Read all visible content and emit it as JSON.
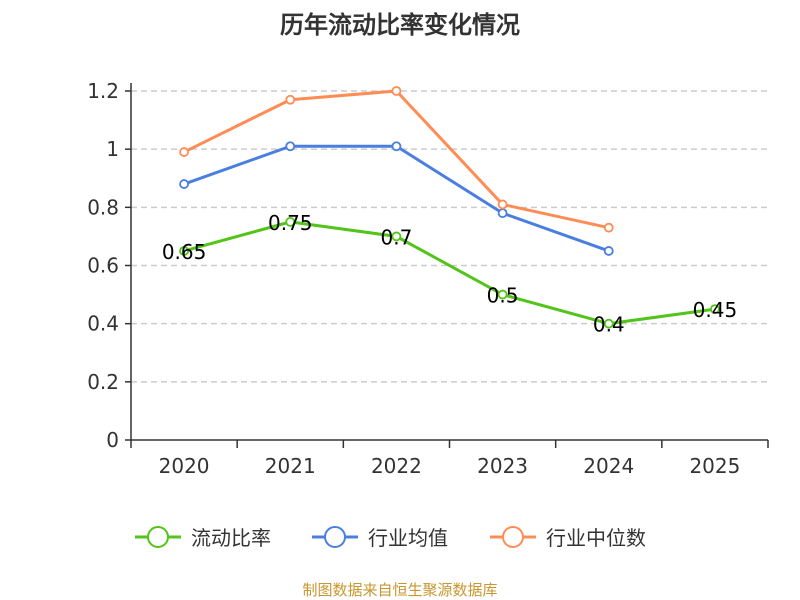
{
  "chart_data": {
    "type": "line",
    "title": "历年流动比率变化情况",
    "xlabel": "",
    "ylabel": "",
    "categories": [
      "2020",
      "2021",
      "2022",
      "2023",
      "2024",
      "2025"
    ],
    "ylim": [
      0,
      1.2
    ],
    "yticks": [
      "0",
      "0.2",
      "0.4",
      "0.6",
      "0.8",
      "1",
      "1.2"
    ],
    "grid": true,
    "legend_position": "bottom",
    "series": [
      {
        "name": "流动比率",
        "color": "#52c41a",
        "values": [
          0.65,
          0.75,
          0.7,
          0.5,
          0.4,
          0.45
        ],
        "labels": [
          "0.65",
          "0.75",
          "0.7",
          "0.5",
          "0.4",
          "0.45"
        ]
      },
      {
        "name": "行业均值",
        "color": "#4a7fe0",
        "values": [
          0.88,
          1.01,
          1.01,
          0.78,
          0.65,
          null
        ]
      },
      {
        "name": "行业中位数",
        "color": "#ff8c55",
        "values": [
          0.99,
          1.17,
          1.2,
          0.81,
          0.73,
          null
        ]
      }
    ],
    "source": "制图数据来自恒生聚源数据库"
  }
}
